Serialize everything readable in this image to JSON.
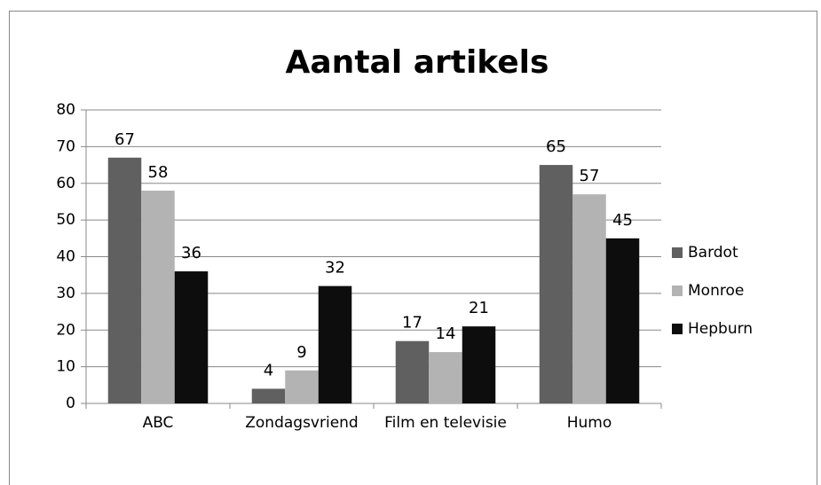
{
  "chart_data": {
    "type": "bar",
    "title": "Aantal artikels",
    "categories": [
      "ABC",
      "Zondagsvriend",
      "Film en televisie",
      "Humo"
    ],
    "series": [
      {
        "name": "Bardot",
        "color": "#606060",
        "values": [
          67,
          4,
          17,
          65
        ]
      },
      {
        "name": "Monroe",
        "color": "#b3b3b3",
        "values": [
          58,
          9,
          14,
          57
        ]
      },
      {
        "name": "Hepburn",
        "color": "#0d0d0d",
        "values": [
          36,
          32,
          21,
          45
        ]
      }
    ],
    "ylim": [
      0,
      80
    ],
    "yticks": [
      0,
      10,
      20,
      30,
      40,
      50,
      60,
      70,
      80
    ],
    "grid": true,
    "legend": "right"
  }
}
